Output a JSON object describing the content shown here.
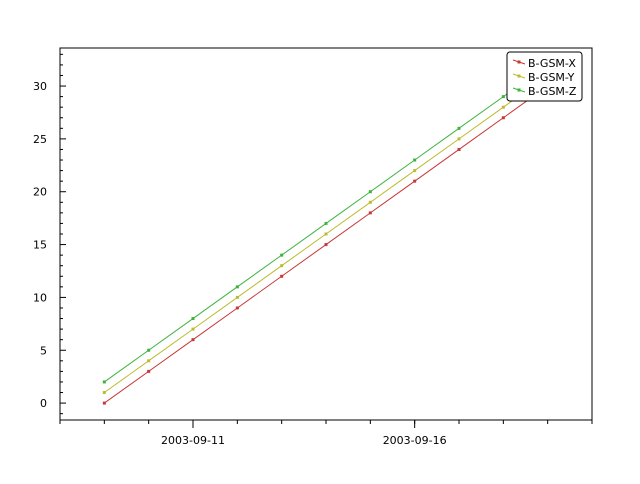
{
  "chart_data": {
    "type": "line",
    "x": [
      "2003-09-09",
      "2003-09-10",
      "2003-09-11",
      "2003-09-12",
      "2003-09-13",
      "2003-09-14",
      "2003-09-15",
      "2003-09-16",
      "2003-09-17",
      "2003-09-18",
      "2003-09-19"
    ],
    "series": [
      {
        "name": "B-GSM-X",
        "color": "#c83737",
        "values": [
          0,
          3,
          6,
          9,
          12,
          15,
          18,
          21,
          24,
          27,
          30
        ]
      },
      {
        "name": "B-GSM-Y",
        "color": "#bcbc2e",
        "values": [
          1,
          4,
          7,
          10,
          13,
          16,
          19,
          22,
          25,
          28,
          31
        ]
      },
      {
        "name": "B-GSM-Z",
        "color": "#3cb43c",
        "values": [
          2,
          5,
          8,
          11,
          14,
          17,
          20,
          23,
          26,
          29,
          32
        ]
      }
    ],
    "xlim": [
      "2003-09-08",
      "2003-09-20"
    ],
    "ylim": [
      -1.6,
      33.6
    ],
    "x_tick_labels": [
      "2003-09-11",
      "2003-09-16"
    ],
    "y_ticks": [
      0,
      5,
      10,
      15,
      20,
      25,
      30
    ],
    "legend": "top-right",
    "grid": false
  }
}
